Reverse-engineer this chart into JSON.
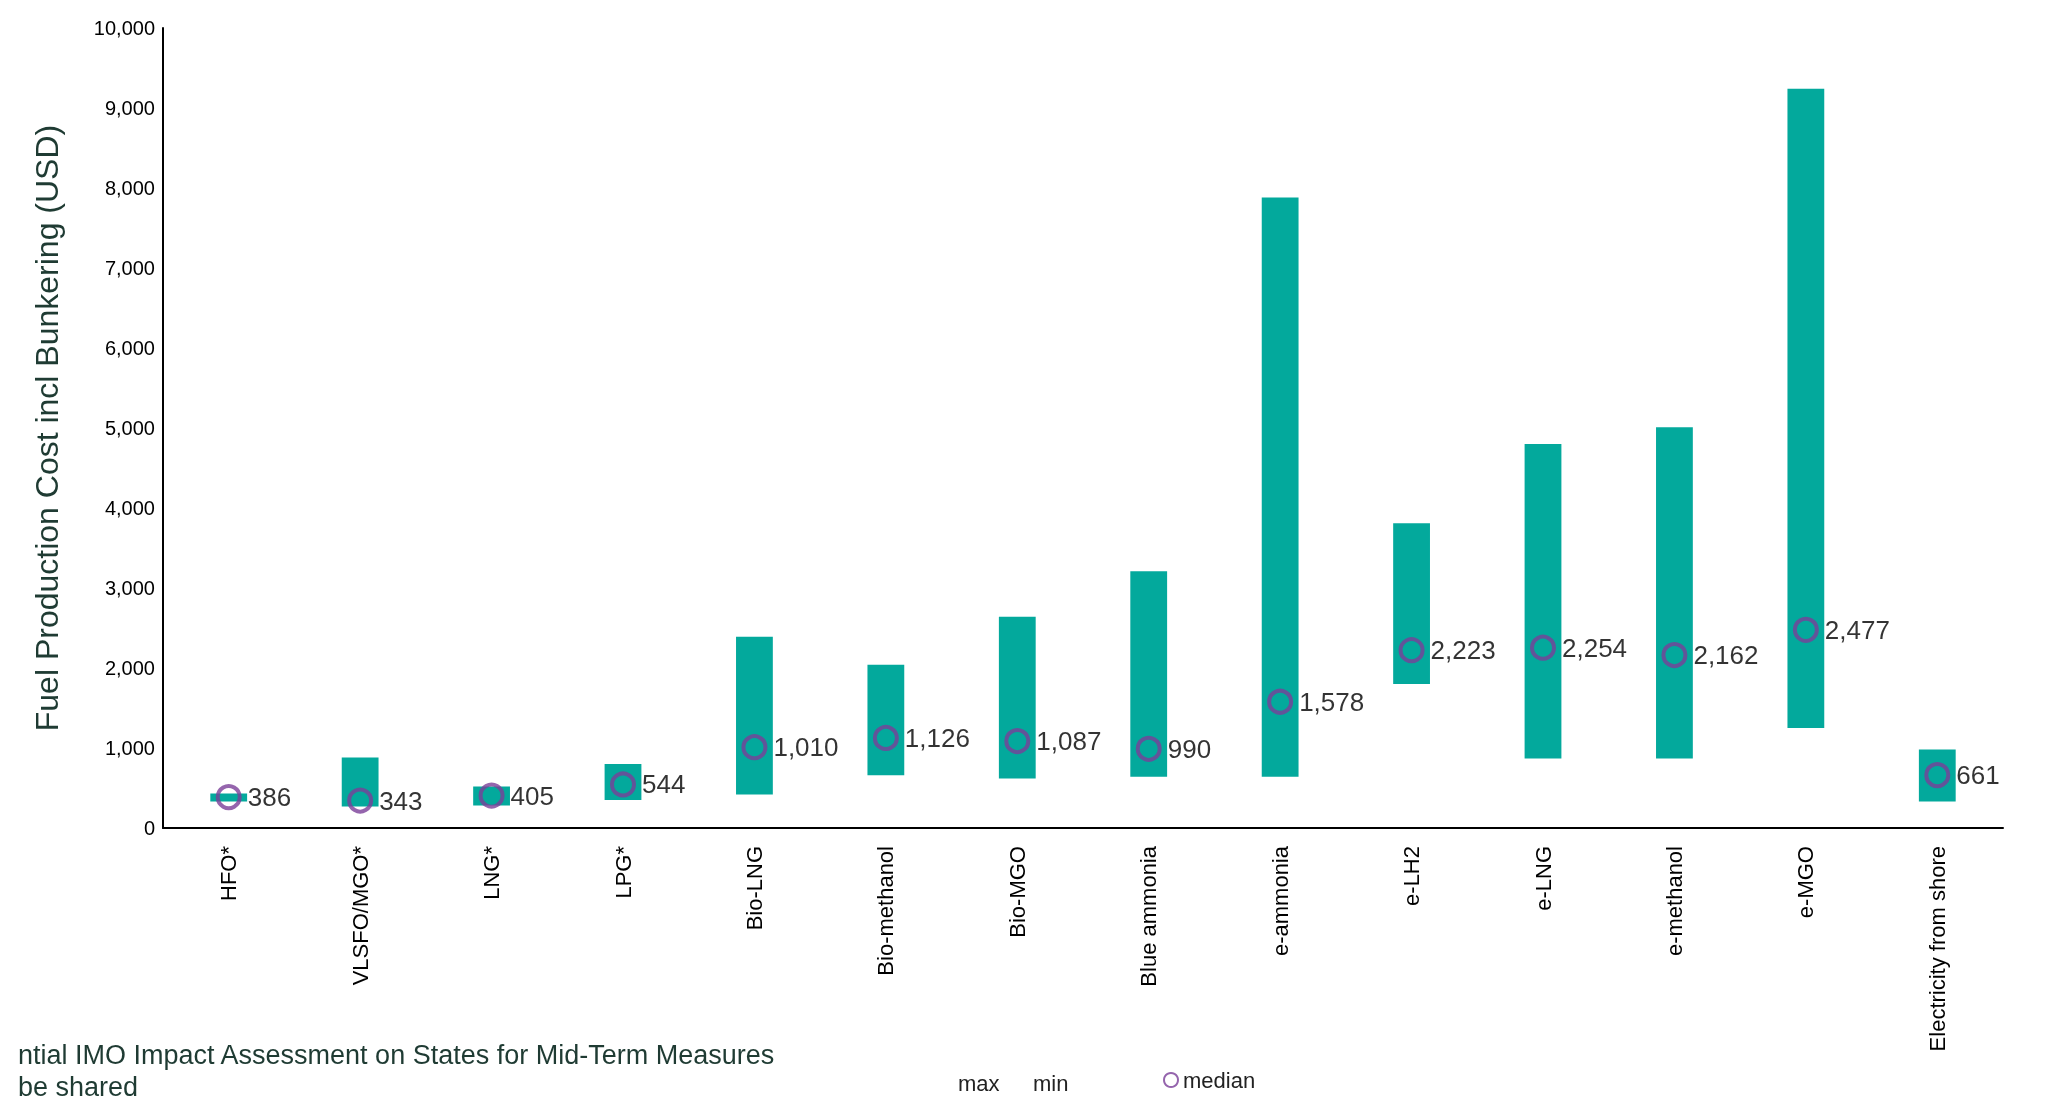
{
  "chart_data": {
    "type": "bar",
    "ylabel": "Fuel Production Cost incl Bunkering (USD)",
    "categories": [
      "HFO*",
      "VLSFO/MGO*",
      "LNG*",
      "LPG*",
      "Bio-LNG",
      "Bio-methanol",
      "Bio-MGO",
      "Blue ammonia",
      "e-ammonia",
      "e-LH2",
      "e-LNG",
      "e-methanol",
      "e-MGO",
      "Electricity from shore"
    ],
    "series": [
      {
        "color": "#03a99c",
        "base": [
          330,
          270,
          280,
          350,
          420,
          660,
          620,
          640,
          640,
          1800,
          870,
          870,
          1250,
          330
        ],
        "values": [
          100,
          610,
          240,
          450,
          1970,
          1380,
          2020,
          2570,
          7240,
          2010,
          3930,
          4140,
          7990,
          650
        ]
      },
      {
        "type": "scatter",
        "name": "median",
        "color": "#7b3f98",
        "marker": "circle",
        "values": [
          386,
          343,
          405,
          544,
          1010,
          1126,
          1087,
          990,
          1578,
          2223,
          2254,
          2162,
          2477,
          661
        ],
        "value_labels": [
          "386",
          "343",
          "405",
          "544",
          "1,010",
          "1,126",
          "1,087",
          "990",
          "1,578",
          "2,223",
          "2,254",
          "2,162",
          "2,477",
          "661"
        ]
      }
    ],
    "ylim": [
      0,
      10000
    ],
    "yticks": [
      0,
      {
        "value": 1000,
        "label": "1,000"
      },
      {
        "value": 2000,
        "label": "2,000"
      },
      {
        "value": 3000,
        "label": "3,000"
      },
      {
        "value": 4000,
        "label": "4,000"
      },
      {
        "value": 5000,
        "label": "5,000"
      },
      {
        "value": 6000,
        "label": "6,000"
      },
      {
        "value": 7000,
        "label": "7,000"
      },
      {
        "value": 8000,
        "label": "8,000"
      },
      {
        "value": 9000,
        "label": "9,000"
      },
      {
        "value": 10000,
        "label": "10,000"
      }
    ],
    "grid": false,
    "legend": "bottom",
    "annotations": [
      "max",
      "min",
      "ntial IMO Impact Assessment on States for Mid-Term Measures",
      "be shared"
    ]
  }
}
